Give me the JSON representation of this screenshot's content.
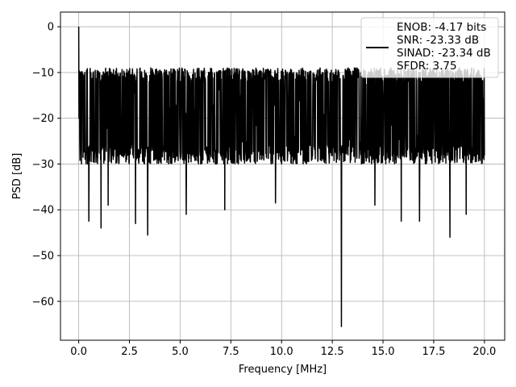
{
  "chart_data": {
    "type": "line",
    "xlabel": "Frequency [MHz]",
    "ylabel": "PSD [dB]",
    "xlim": [
      -0.9,
      21.0
    ],
    "ylim": [
      -68.5,
      3.2
    ],
    "xticks": [
      0.0,
      2.5,
      5.0,
      7.5,
      10.0,
      12.5,
      15.0,
      17.5,
      20.0
    ],
    "xtick_labels": [
      "0.0",
      "2.5",
      "5.0",
      "7.5",
      "10.0",
      "12.5",
      "15.0",
      "17.5",
      "20.0"
    ],
    "yticks": [
      0,
      -10,
      -20,
      -30,
      -40,
      -50,
      -60
    ],
    "ytick_labels": [
      "0",
      "−10",
      "−20",
      "−30",
      "−40",
      "−50",
      "−60"
    ],
    "grid": true,
    "legend": {
      "placement": "top-right",
      "lines": [
        "ENOB: -4.17 bits",
        "SNR: -23.33 dB",
        "SINAD: -23.34 dB",
        "SFDR: 3.75"
      ]
    },
    "series": [
      {
        "color": "#000000",
        "x_range": [
          0,
          20
        ],
        "peak": {
          "x": 0.0,
          "y": 0.0
        },
        "noise_band": {
          "top": -9,
          "bottom": -30,
          "typical_top": -12,
          "typical_bottom": -26
        },
        "notable_dips": [
          {
            "x": 0.05,
            "y": -25
          },
          {
            "x": 0.5,
            "y": -42.5
          },
          {
            "x": 1.1,
            "y": -44
          },
          {
            "x": 1.45,
            "y": -39
          },
          {
            "x": 2.8,
            "y": -43
          },
          {
            "x": 3.4,
            "y": -45.5
          },
          {
            "x": 5.3,
            "y": -41
          },
          {
            "x": 7.2,
            "y": -40
          },
          {
            "x": 9.7,
            "y": -38.5
          },
          {
            "x": 12.95,
            "y": -65.5
          },
          {
            "x": 14.6,
            "y": -39
          },
          {
            "x": 15.9,
            "y": -42.5
          },
          {
            "x": 16.8,
            "y": -42.5
          },
          {
            "x": 18.3,
            "y": -46
          },
          {
            "x": 19.1,
            "y": -41
          }
        ]
      }
    ]
  }
}
